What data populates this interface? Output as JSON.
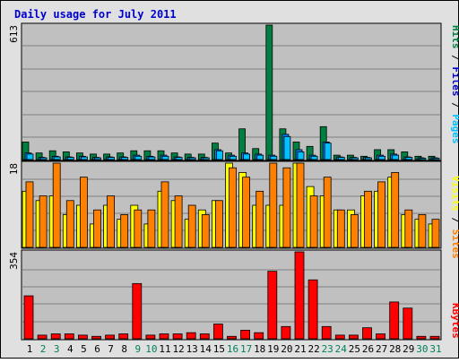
{
  "title": "Daily usage for July 2011",
  "days": [
    "1",
    "2",
    "3",
    "4",
    "5",
    "6",
    "7",
    "8",
    "9",
    "10",
    "11",
    "12",
    "13",
    "14",
    "15",
    "16",
    "17",
    "18",
    "19",
    "20",
    "21",
    "22",
    "23",
    "24",
    "25",
    "26",
    "27",
    "28",
    "29",
    "30",
    "31"
  ],
  "weekend_days": [
    "2",
    "3",
    "9",
    "10",
    "16",
    "17",
    "23",
    "24",
    "30",
    "31"
  ],
  "colors": {
    "hits": "#008040",
    "files": "#0080ff",
    "pages": "#00c0ff",
    "visits": "#ffff00",
    "sites": "#ff8000",
    "kbytes": "#ff0000",
    "title": "#0000cc",
    "panel_bg": "#c0c0c0",
    "frame_bg": "#e0e0e0",
    "grid": "#808080",
    "weekday_text": "#000000",
    "weekend_text": "#00805c"
  },
  "legend_top": {
    "pages": "Pages",
    "files": "Files",
    "hits": "Hits",
    "sep": " / "
  },
  "legend_mid": {
    "sites": "Sites",
    "visits": "Visits",
    "sep": " / "
  },
  "legend_bot": {
    "kbytes": "KBytes"
  },
  "chart_data": [
    {
      "type": "bar",
      "title": "Daily usage for July 2011",
      "panel": "hits-files-pages",
      "categories": [
        "1",
        "2",
        "3",
        "4",
        "5",
        "6",
        "7",
        "8",
        "9",
        "10",
        "11",
        "12",
        "13",
        "14",
        "15",
        "16",
        "17",
        "18",
        "19",
        "20",
        "21",
        "22",
        "23",
        "24",
        "25",
        "26",
        "27",
        "28",
        "29",
        "30",
        "31"
      ],
      "ymax_label": "613",
      "ylim": [
        0,
        613
      ],
      "series": [
        {
          "name": "Hits",
          "values": [
            80,
            30,
            40,
            35,
            30,
            25,
            25,
            30,
            40,
            40,
            40,
            30,
            25,
            25,
            75,
            30,
            140,
            50,
            613,
            140,
            80,
            60,
            150,
            20,
            20,
            15,
            45,
            45,
            35,
            15,
            15
          ]
        },
        {
          "name": "Files",
          "values": [
            30,
            10,
            15,
            12,
            15,
            10,
            12,
            12,
            20,
            15,
            20,
            12,
            10,
            10,
            45,
            20,
            30,
            25,
            20,
            115,
            45,
            20,
            80,
            12,
            10,
            10,
            20,
            25,
            12,
            8,
            8
          ]
        },
        {
          "name": "Pages",
          "values": [
            25,
            8,
            12,
            10,
            12,
            8,
            10,
            10,
            15,
            12,
            15,
            10,
            8,
            8,
            40,
            15,
            25,
            20,
            15,
            105,
            35,
            15,
            75,
            10,
            8,
            8,
            15,
            20,
            10,
            6,
            6
          ]
        }
      ]
    },
    {
      "type": "bar",
      "panel": "visits-sites",
      "categories": [
        "1",
        "2",
        "3",
        "4",
        "5",
        "6",
        "7",
        "8",
        "9",
        "10",
        "11",
        "12",
        "13",
        "14",
        "15",
        "16",
        "17",
        "18",
        "19",
        "20",
        "21",
        "22",
        "23",
        "24",
        "25",
        "26",
        "27",
        "28",
        "29",
        "30",
        "31"
      ],
      "ymax_label": "18",
      "ylim": [
        0,
        18
      ],
      "series": [
        {
          "name": "Visits",
          "values": [
            12,
            10,
            11,
            7,
            9,
            5,
            9,
            6,
            9,
            5,
            12,
            10,
            6,
            8,
            10,
            18,
            16,
            9,
            9,
            9,
            18,
            13,
            11,
            8,
            8,
            11,
            12,
            15,
            7,
            6,
            5
          ]
        },
        {
          "name": "Sites",
          "values": [
            14,
            11,
            18,
            10,
            15,
            8,
            11,
            7,
            8,
            8,
            14,
            11,
            9,
            7,
            10,
            17,
            15,
            12,
            18,
            17,
            18,
            11,
            15,
            8,
            7,
            12,
            14,
            16,
            8,
            7,
            6
          ]
        }
      ]
    },
    {
      "type": "bar",
      "panel": "kbytes",
      "categories": [
        "1",
        "2",
        "3",
        "4",
        "5",
        "6",
        "7",
        "8",
        "9",
        "10",
        "11",
        "12",
        "13",
        "14",
        "15",
        "16",
        "17",
        "18",
        "19",
        "20",
        "21",
        "22",
        "23",
        "24",
        "25",
        "26",
        "27",
        "28",
        "29",
        "30",
        "31"
      ],
      "ymax_label": "354",
      "ylim": [
        0,
        354
      ],
      "series": [
        {
          "name": "KBytes",
          "values": [
            175,
            15,
            20,
            20,
            15,
            10,
            15,
            20,
            225,
            15,
            20,
            20,
            25,
            20,
            60,
            10,
            35,
            25,
            275,
            50,
            354,
            240,
            50,
            15,
            15,
            45,
            20,
            150,
            125,
            10,
            10
          ]
        }
      ]
    }
  ]
}
